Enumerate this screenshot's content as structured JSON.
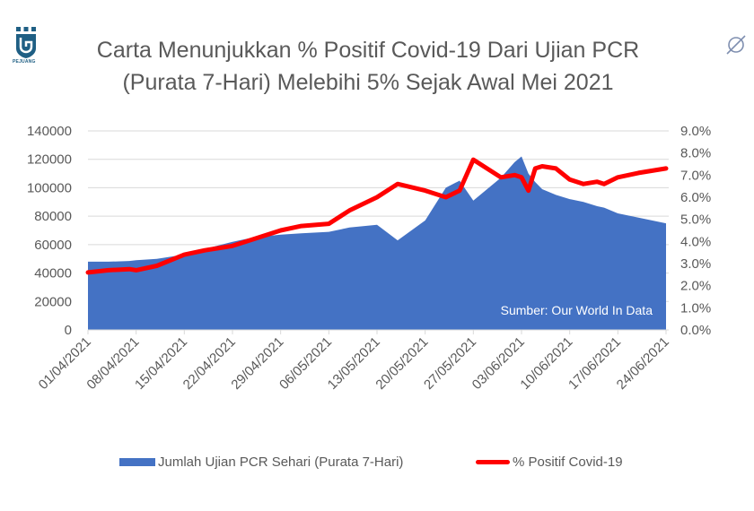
{
  "logo": {
    "text": "PEJUANG",
    "icon": "pejuang-shield-logo-icon"
  },
  "corner_icon": "empty-set-icon",
  "title_lines": [
    "Carta Menunjukkan % Positif Covid-19 Dari Ujian PCR",
    "(Purata 7-Hari) Melebihi 5% Sejak Awal Mei 2021"
  ],
  "source_note": "Sumber: Our World In Data",
  "legend": [
    {
      "label": "Jumlah Ujian PCR Sehari (Purata 7-Hari)",
      "color": "#4472c4",
      "type": "area"
    },
    {
      "label": "% Positif Covid-19",
      "color": "#ff0000",
      "type": "line"
    }
  ],
  "colors": {
    "area": "#4472c4",
    "line": "#ff0000",
    "grid": "#d9d9d9",
    "text": "#595959"
  },
  "chart_data": {
    "type": "area+line",
    "title": "Carta Menunjukkan % Positif Covid-19 Dari Ujian PCR (Purata 7-Hari) Melebihi 5% Sejak Awal Mei 2021",
    "xlabel": "",
    "ylabel_left": "Jumlah Ujian PCR Sehari (Purata 7-Hari)",
    "ylabel_right": "% Positif Covid-19",
    "ylim_left": [
      0,
      140000
    ],
    "ylim_right": [
      0.0,
      9.0
    ],
    "y_ticks_left": [
      "0",
      "20000",
      "40000",
      "60000",
      "80000",
      "100000",
      "120000",
      "140000"
    ],
    "y_ticks_right": [
      "0.0%",
      "1.0%",
      "2.0%",
      "3.0%",
      "4.0%",
      "5.0%",
      "6.0%",
      "7.0%",
      "8.0%",
      "9.0%"
    ],
    "x_tick_labels": [
      "01/04/2021",
      "08/04/2021",
      "15/04/2021",
      "22/04/2021",
      "29/04/2021",
      "06/05/2021",
      "13/05/2021",
      "20/05/2021",
      "27/05/2021",
      "03/06/2021",
      "10/06/2021",
      "17/06/2021",
      "24/06/2021"
    ],
    "grid": true,
    "legend_position": "bottom",
    "annotation": "Sumber: Our World In Data",
    "x_days": [
      0,
      3,
      6,
      7,
      10,
      14,
      17,
      21,
      24,
      28,
      31,
      35,
      38,
      42,
      45,
      49,
      52,
      54,
      56,
      60,
      62,
      63,
      64,
      65,
      66,
      68,
      70,
      72,
      74,
      75,
      77,
      80,
      84
    ],
    "series": [
      {
        "name": "Jumlah Ujian PCR Sehari (Purata 7-Hari)",
        "type": "area",
        "axis": "left",
        "values": [
          48000,
          48000,
          48500,
          49000,
          50000,
          53000,
          57000,
          62000,
          65000,
          67000,
          68000,
          69000,
          72000,
          74000,
          63000,
          77000,
          100000,
          105000,
          91000,
          107000,
          118000,
          122000,
          110000,
          104000,
          99000,
          95000,
          92000,
          90000,
          87000,
          86000,
          82000,
          79000,
          75000
        ]
      },
      {
        "name": "% Positif Covid-19",
        "type": "line",
        "axis": "right",
        "values": [
          2.6,
          2.7,
          2.75,
          2.7,
          2.9,
          3.4,
          3.6,
          3.8,
          4.1,
          4.5,
          4.7,
          4.8,
          5.4,
          6.0,
          6.6,
          6.3,
          6.0,
          6.3,
          7.7,
          6.9,
          7.0,
          6.9,
          6.3,
          7.3,
          7.4,
          7.3,
          6.8,
          6.6,
          6.7,
          6.6,
          6.9,
          7.1,
          7.3
        ]
      }
    ]
  }
}
